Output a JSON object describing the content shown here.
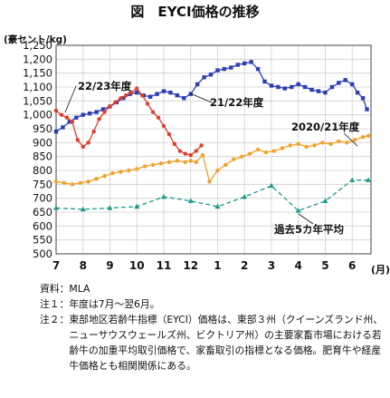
{
  "figure": {
    "title": "図　EYCI価格の推移",
    "unit_label": "(豪セント/kg)",
    "x_unit_label": "(月)"
  },
  "chart_data": {
    "type": "line",
    "title": "EYCI価格の推移",
    "ylabel": "豪セント/kg",
    "xlabel": "月",
    "ylim": [
      500,
      1250
    ],
    "yticks": [
      500,
      550,
      600,
      650,
      700,
      750,
      800,
      850,
      900,
      950,
      1000,
      1050,
      1100,
      1150,
      1200,
      1250
    ],
    "categories": [
      "7",
      "8",
      "9",
      "10",
      "11",
      "12",
      "1",
      "2",
      "3",
      "4",
      "5",
      "6"
    ],
    "grid": true,
    "series": [
      {
        "name": "21/22年度",
        "color": "#2b3fb3",
        "marker": "square",
        "x": [
          0,
          0.25,
          0.5,
          0.75,
          1,
          1.25,
          1.5,
          1.75,
          2,
          2.25,
          2.5,
          2.75,
          3,
          3.25,
          3.5,
          3.75,
          4,
          4.25,
          4.5,
          4.75,
          5,
          5.25,
          5.5,
          5.75,
          6,
          6.25,
          6.5,
          6.75,
          7,
          7.25,
          7.5,
          7.75,
          8,
          8.25,
          8.5,
          8.75,
          9,
          9.25,
          9.5,
          9.75,
          10,
          10.25,
          10.5,
          10.75,
          11,
          11.2,
          11.4,
          11.55
        ],
        "values": [
          940,
          955,
          975,
          990,
          1000,
          1005,
          1010,
          1020,
          1030,
          1045,
          1060,
          1075,
          1080,
          1070,
          1065,
          1075,
          1085,
          1080,
          1070,
          1060,
          1075,
          1110,
          1135,
          1145,
          1160,
          1165,
          1170,
          1180,
          1185,
          1190,
          1165,
          1120,
          1105,
          1100,
          1095,
          1100,
          1110,
          1100,
          1090,
          1085,
          1080,
          1100,
          1115,
          1125,
          1110,
          1080,
          1060,
          1020
        ]
      },
      {
        "name": "22/23年度",
        "color": "#e23b2a",
        "marker": "circle",
        "x": [
          0,
          0.2,
          0.4,
          0.6,
          0.8,
          1,
          1.2,
          1.4,
          1.6,
          1.8,
          2,
          2.2,
          2.4,
          2.6,
          2.8,
          3,
          3.2,
          3.4,
          3.6,
          3.8,
          4,
          4.2,
          4.4,
          4.6,
          4.8,
          5,
          5.2,
          5.4
        ],
        "values": [
          1015,
          1000,
          990,
          975,
          910,
          885,
          900,
          940,
          985,
          1010,
          1030,
          1045,
          1060,
          1070,
          1080,
          1095,
          1070,
          1040,
          1010,
          990,
          960,
          930,
          895,
          870,
          860,
          855,
          870,
          890
        ]
      },
      {
        "name": "2020/21年度",
        "color": "#f0a229",
        "marker": "circle",
        "x": [
          0,
          0.3,
          0.6,
          0.9,
          1.2,
          1.5,
          1.8,
          2.1,
          2.4,
          2.7,
          3,
          3.3,
          3.6,
          3.9,
          4.2,
          4.5,
          4.8,
          5,
          5.2,
          5.45,
          5.7,
          6,
          6.3,
          6.6,
          6.9,
          7.2,
          7.5,
          7.8,
          8.1,
          8.4,
          8.7,
          9,
          9.3,
          9.6,
          9.9,
          10.2,
          10.5,
          10.8,
          11.1,
          11.4,
          11.6
        ],
        "values": [
          760,
          755,
          750,
          755,
          760,
          770,
          780,
          790,
          795,
          800,
          805,
          815,
          820,
          825,
          830,
          835,
          830,
          835,
          830,
          855,
          760,
          800,
          820,
          840,
          850,
          860,
          875,
          865,
          870,
          880,
          890,
          895,
          885,
          890,
          900,
          895,
          905,
          900,
          910,
          920,
          925
        ]
      },
      {
        "name": "過去5カ年平均",
        "color": "#1d9a8a",
        "marker": "triangle",
        "x": [
          0,
          1,
          2,
          3,
          4,
          5,
          6,
          7,
          8,
          9,
          10,
          11,
          11.6
        ],
        "values": [
          665,
          660,
          665,
          670,
          705,
          690,
          670,
          705,
          745,
          655,
          690,
          765,
          765
        ]
      }
    ],
    "labels": {
      "s_2223": "22/23年度",
      "s_2122": "21/22年度",
      "s_2021": "2020/21年度",
      "s_avg": "過去5カ年平均"
    }
  },
  "notes": [
    {
      "key": "資料：",
      "text": "MLA"
    },
    {
      "key": "注１：",
      "text": "年度は7月～翌6月。"
    },
    {
      "key": "注２：",
      "text": "東部地区若齢牛指標（EYCI）価格は、東部３州（クイーンズランド州、ニューサウスウェールズ州、ビクトリア州）の主要家畜市場における若齢牛の加重平均取引価格で、家畜取引の指標となる価格。肥育牛や経産牛価格とも相関関係にある。"
    }
  ]
}
